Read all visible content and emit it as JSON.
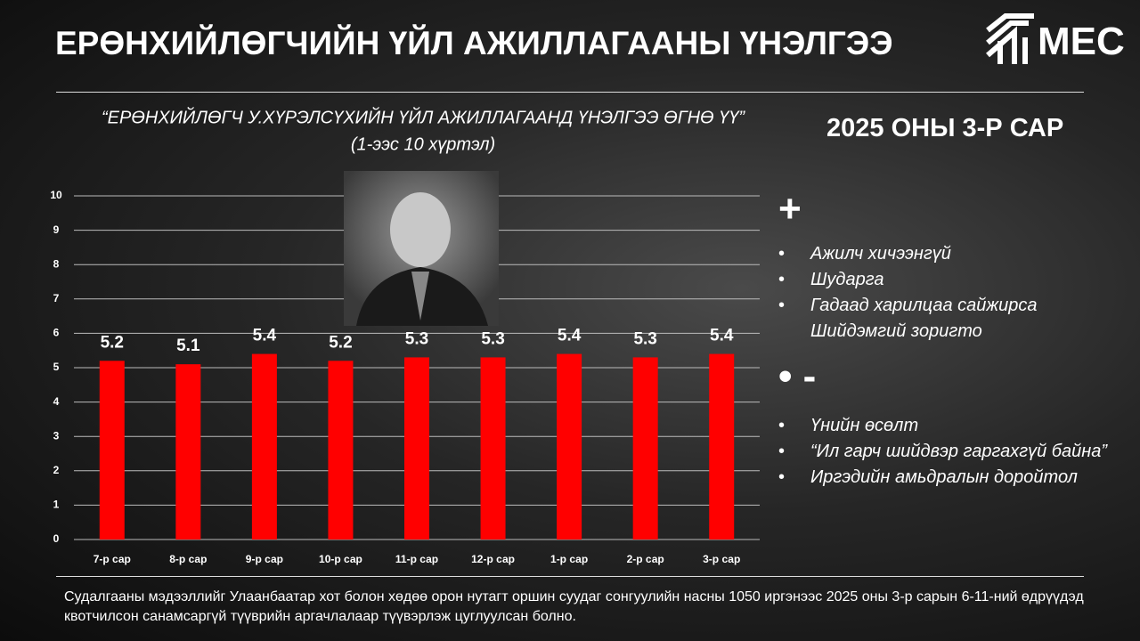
{
  "header": {
    "title": "ЕРӨНХИЙЛӨГЧИЙН ҮЙЛ АЖИЛЛАГААНЫ ҮНЭЛГЭЭ",
    "logo": "MEC",
    "period": "2025 ОНЫ 3-Р САР"
  },
  "chart_data": {
    "type": "bar",
    "title": "“ЕРӨНХИЙЛӨГЧ У.ХҮРЭЛСҮХИЙН ҮЙЛ АЖИЛЛАГААНД ҮНЭЛГЭЭ ӨГНӨ ҮҮ”",
    "subtitle": "(1-ээс 10 хүртэл)",
    "categories": [
      "7-р сар",
      "8-р сар",
      "9-р сар",
      "10-р сар",
      "11-р сар",
      "12-р сар",
      "1-р сар",
      "2-р сар",
      "3-р сар"
    ],
    "values": [
      5.2,
      5.1,
      5.4,
      5.2,
      5.3,
      5.3,
      5.4,
      5.3,
      5.4
    ],
    "color": "#ff0000",
    "ylim": [
      0,
      10
    ],
    "yticks": [
      0,
      1,
      2,
      3,
      4,
      5,
      6,
      7,
      8,
      9,
      10
    ],
    "grid": true
  },
  "pros": {
    "heading": "+",
    "items": [
      "Ажилч хичээнгүй",
      "Шударга",
      "Гадаад харилцаа сайжирса Шийдэмгий зоригто"
    ]
  },
  "cons": {
    "heading": "-",
    "items": [
      "Үнийн өсөлт",
      "“Ил гарч шийдвэр гаргахгүй байна”",
      "Иргэдийн амьдралын доройтол"
    ]
  },
  "footer": {
    "note": "Судалгааны мэдээллийг Улаанбаатар хот болон хөдөө орон нутагт оршин суудаг сонгуулийн насны 1050 иргэнээс 2025 оны 3-р сарын 6-11-ний өдрүүдэд квотчилсон санамсаргүй түүврийн аргачлалаар түүвэрлэж цуглуулсан болно."
  }
}
